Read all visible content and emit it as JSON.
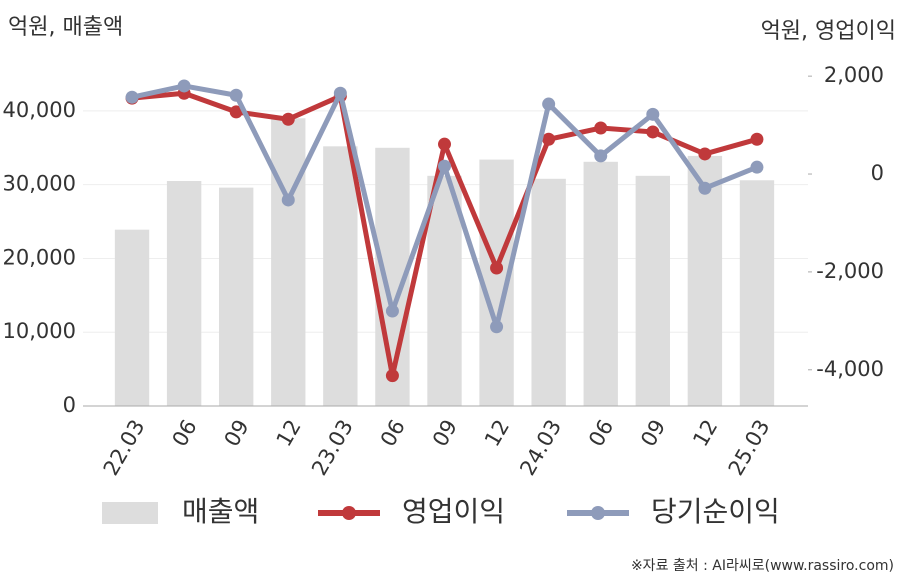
{
  "chart_data": {
    "type": "combo",
    "ylabel": "억원, 매출액",
    "y2label": "억원, 영업이익",
    "source": "※자료 출처 : AI라씨로(www.rassiro.com)",
    "categories": [
      "22.03",
      "06",
      "09",
      "12",
      "23.03",
      "06",
      "09",
      "12",
      "24.03",
      "06",
      "09",
      "12",
      "25.03"
    ],
    "series": [
      {
        "name": "매출액",
        "type": "bar",
        "color": "#dddddd",
        "values": [
          23900,
          30500,
          29600,
          39000,
          35200,
          35000,
          31200,
          33400,
          30800,
          33100,
          31200,
          33900,
          30600
        ]
      },
      {
        "name": "영업이익",
        "type": "line",
        "axis": "y2",
        "color": "#c0393b",
        "values": [
          1550,
          1650,
          1270,
          1120,
          1590,
          -4120,
          610,
          -1920,
          710,
          940,
          860,
          410,
          710
        ]
      },
      {
        "name": "당기순이익",
        "type": "line",
        "axis": "y2",
        "color": "#8e9bba",
        "values": [
          1570,
          1800,
          1610,
          -530,
          1650,
          -2800,
          160,
          -3120,
          1430,
          370,
          1220,
          -290,
          140
        ]
      }
    ],
    "ylim": [
      0,
      46900
    ],
    "yticks": [
      0,
      {
        "value": 10000,
        "label": "10,000"
      },
      {
        "value": 20000,
        "label": "20,000"
      },
      {
        "value": 30000,
        "label": "30,000"
      },
      {
        "value": 40000,
        "label": "40,000"
      }
    ],
    "y2lim": [
      -4740,
      2330
    ],
    "y2ticks": [
      {
        "value": -4000,
        "label": "-4,000"
      },
      {
        "value": -2000,
        "label": "-2,000"
      },
      0,
      {
        "value": 2000,
        "label": "2,000"
      }
    ],
    "grid": true
  }
}
